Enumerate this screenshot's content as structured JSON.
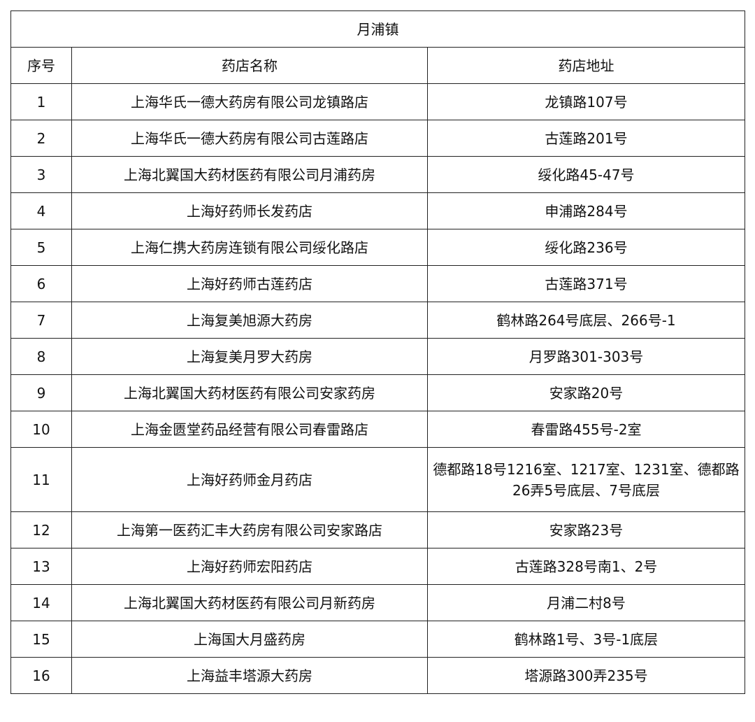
{
  "title": "月浦镇",
  "headers": [
    "序号",
    "药店名称",
    "药店地址"
  ],
  "rows": [
    {
      "no": "1",
      "name": "上海华氏一德大药房有限公司龙镇路店",
      "address": "龙镇路107号"
    },
    {
      "no": "2",
      "name": "上海华氏一德大药房有限公司古莲路店",
      "address": "古莲路201号"
    },
    {
      "no": "3",
      "name": "上海北翼国大药材医药有限公司月浦药房",
      "address": "绥化路45-47号"
    },
    {
      "no": "4",
      "name": "上海好药师长发药店",
      "address": "申浦路284号"
    },
    {
      "no": "5",
      "name": "上海仁携大药房连锁有限公司绥化路店",
      "address": "绥化路236号"
    },
    {
      "no": "6",
      "name": "上海好药师古莲药店",
      "address": "古莲路371号"
    },
    {
      "no": "7",
      "name": "上海复美旭源大药房",
      "address": "鹤林路264号底层、266号-1"
    },
    {
      "no": "8",
      "name": "上海复美月罗大药房",
      "address": "月罗路301-303号"
    },
    {
      "no": "9",
      "name": "上海北翼国大药材医药有限公司安家药房",
      "address": "安家路20号"
    },
    {
      "no": "10",
      "name": "上海金匮堂药品经营有限公司春雷路店",
      "address": "春雷路455号-2室"
    },
    {
      "no": "11",
      "name": "上海好药师金月药店",
      "address": "德都路18号1216室、1217室、1231室、德都路26弄5号底层、7号底层"
    },
    {
      "no": "12",
      "name": "上海第一医药汇丰大药房有限公司安家路店",
      "address": "安家路23号"
    },
    {
      "no": "13",
      "name": "上海好药师宏阳药店",
      "address": "古莲路328号南1、2号"
    },
    {
      "no": "14",
      "name": "上海北翼国大药材医药有限公司月新药房",
      "address": "月浦二村8号"
    },
    {
      "no": "15",
      "name": "上海国大月盛药房",
      "address": "鹤林路1号、3号-1底层"
    },
    {
      "no": "16",
      "name": "上海益丰塔源大药房",
      "address": "塔源路300弄235号"
    }
  ]
}
